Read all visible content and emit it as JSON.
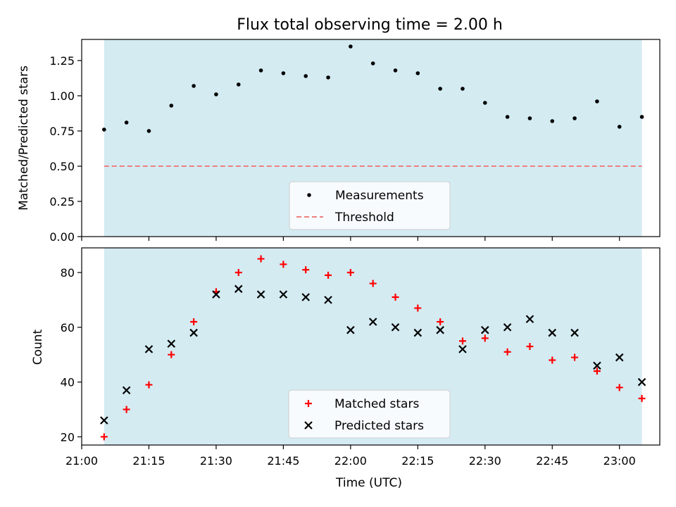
{
  "figure": {
    "title": "Flux total observing time = 2.00 h",
    "xlabel": "Time (UTC)"
  },
  "colors": {
    "shade": "#add8e6",
    "measurement": "#000000",
    "threshold": "#f08080",
    "matched": "#ff0000",
    "predicted": "#000000"
  },
  "chart_data": [
    {
      "type": "scatter",
      "ylabel": "Matched/Predicted stars",
      "xlim": [
        "21:00",
        "23:09"
      ],
      "ylim": [
        0,
        1.4
      ],
      "yticks": [
        "0.00",
        "0.25",
        "0.50",
        "0.75",
        "1.00",
        "1.25"
      ],
      "shaded_span": [
        "21:05",
        "23:05"
      ],
      "threshold": 0.5,
      "grid": false,
      "legend_position": "lower center",
      "x": [
        "21:05",
        "21:10",
        "21:15",
        "21:20",
        "21:25",
        "21:30",
        "21:35",
        "21:40",
        "21:45",
        "21:50",
        "21:55",
        "22:00",
        "22:05",
        "22:10",
        "22:15",
        "22:20",
        "22:25",
        "22:30",
        "22:35",
        "22:40",
        "22:45",
        "22:50",
        "22:55",
        "23:00",
        "23:05"
      ],
      "series": [
        {
          "name": "Measurements",
          "marker": "dot",
          "values": [
            0.76,
            0.81,
            0.75,
            0.93,
            1.07,
            1.01,
            1.08,
            1.18,
            1.16,
            1.14,
            1.13,
            1.35,
            1.23,
            1.18,
            1.16,
            1.05,
            1.05,
            0.95,
            0.85,
            0.84,
            0.82,
            0.84,
            0.96,
            0.78,
            0.85
          ]
        },
        {
          "name": "Threshold",
          "marker": "dashed-line",
          "values": [
            0.5
          ]
        }
      ]
    },
    {
      "type": "scatter",
      "ylabel": "Count",
      "xlim": [
        "21:00",
        "23:09"
      ],
      "ylim": [
        17,
        89
      ],
      "yticks": [
        "20",
        "40",
        "60",
        "80"
      ],
      "shaded_span": [
        "21:05",
        "23:05"
      ],
      "grid": false,
      "legend_position": "lower center",
      "x": [
        "21:05",
        "21:10",
        "21:15",
        "21:20",
        "21:25",
        "21:30",
        "21:35",
        "21:40",
        "21:45",
        "21:50",
        "21:55",
        "22:00",
        "22:05",
        "22:10",
        "22:15",
        "22:20",
        "22:25",
        "22:30",
        "22:35",
        "22:40",
        "22:45",
        "22:50",
        "22:55",
        "23:00",
        "23:05"
      ],
      "series": [
        {
          "name": "Matched stars",
          "marker": "plus",
          "values": [
            20,
            30,
            39,
            50,
            62,
            73,
            80,
            85,
            83,
            81,
            79,
            80,
            76,
            71,
            67,
            62,
            55,
            56,
            51,
            53,
            48,
            49,
            44,
            38,
            34
          ]
        },
        {
          "name": "Predicted stars",
          "marker": "x",
          "values": [
            26,
            37,
            52,
            54,
            58,
            72,
            74,
            72,
            72,
            71,
            70,
            59,
            62,
            60,
            58,
            59,
            52,
            59,
            60,
            63,
            58,
            58,
            46,
            49,
            40
          ]
        }
      ]
    }
  ],
  "xticks": [
    "21:00",
    "21:15",
    "21:30",
    "21:45",
    "22:00",
    "22:15",
    "22:30",
    "22:45",
    "23:00"
  ]
}
